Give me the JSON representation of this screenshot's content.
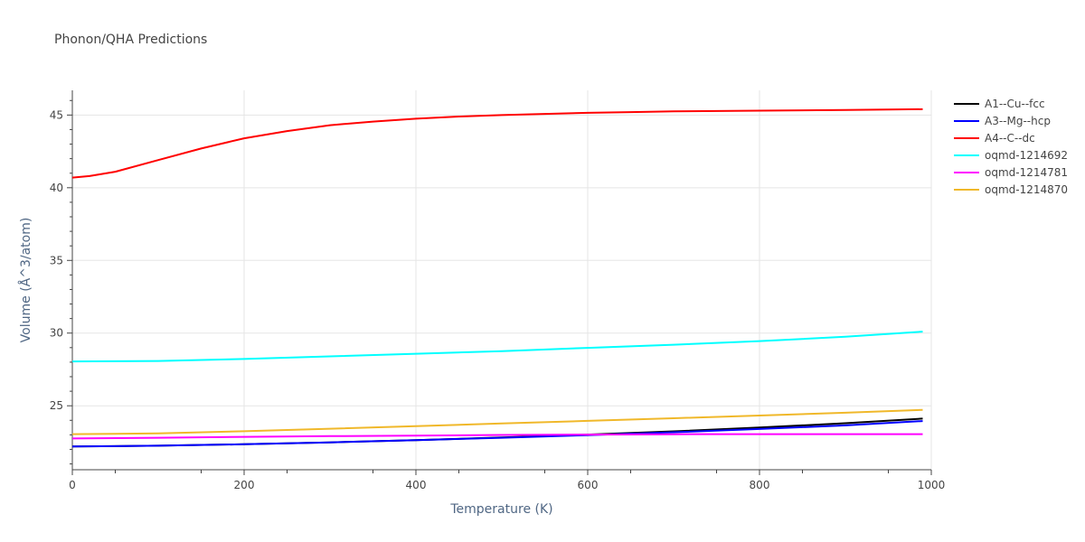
{
  "chart_data": {
    "type": "line",
    "title": "Phonon/QHA Predictions",
    "xlabel": "Temperature (K)",
    "ylabel": "Volume (Å^3/atom)",
    "xlim": [
      0,
      1000
    ],
    "ylim": [
      20.6,
      46.7
    ],
    "xticks": [
      0,
      200,
      400,
      600,
      800,
      1000
    ],
    "yticks": [
      25,
      30,
      35,
      40,
      45
    ],
    "grid": true,
    "legend_position": "right",
    "series": [
      {
        "name": "A1--Cu--fcc",
        "color": "#000000",
        "x": [
          0,
          100,
          200,
          300,
          400,
          500,
          600,
          700,
          800,
          900,
          990
        ],
        "y": [
          22.2,
          22.25,
          22.35,
          22.48,
          22.64,
          22.82,
          23.02,
          23.24,
          23.5,
          23.8,
          24.12
        ]
      },
      {
        "name": "A3--Mg--hcp",
        "color": "#0000ff",
        "x": [
          0,
          100,
          200,
          300,
          400,
          500,
          600,
          700,
          800,
          900,
          990
        ],
        "y": [
          22.2,
          22.25,
          22.35,
          22.48,
          22.63,
          22.8,
          22.98,
          23.18,
          23.4,
          23.65,
          23.95
        ]
      },
      {
        "name": "A4--C--dc",
        "color": "#ff0000",
        "x": [
          0,
          20,
          50,
          100,
          150,
          200,
          250,
          300,
          350,
          400,
          450,
          500,
          550,
          600,
          650,
          700,
          800,
          900,
          990
        ],
        "y": [
          40.7,
          40.8,
          41.1,
          41.9,
          42.7,
          43.4,
          43.9,
          44.3,
          44.55,
          44.75,
          44.9,
          45.0,
          45.08,
          45.15,
          45.2,
          45.25,
          45.3,
          45.35,
          45.4
        ]
      },
      {
        "name": "oqmd-1214692",
        "color": "#00ffff",
        "x": [
          0,
          100,
          200,
          300,
          400,
          500,
          600,
          700,
          800,
          900,
          990
        ],
        "y": [
          28.05,
          28.08,
          28.22,
          28.4,
          28.58,
          28.76,
          28.98,
          29.2,
          29.45,
          29.75,
          30.1
        ]
      },
      {
        "name": "oqmd-1214781",
        "color": "#ff00ff",
        "x": [
          0,
          100,
          200,
          300,
          400,
          500,
          600,
          700,
          800,
          900,
          990
        ],
        "y": [
          22.75,
          22.8,
          22.86,
          22.91,
          22.95,
          22.99,
          23.02,
          23.04,
          23.05,
          23.05,
          23.05
        ]
      },
      {
        "name": "oqmd-1214870",
        "color": "#f0b82a",
        "x": [
          0,
          100,
          200,
          300,
          400,
          500,
          600,
          700,
          800,
          900,
          990
        ],
        "y": [
          23.05,
          23.1,
          23.25,
          23.42,
          23.6,
          23.78,
          23.96,
          24.14,
          24.33,
          24.52,
          24.72
        ]
      }
    ]
  }
}
